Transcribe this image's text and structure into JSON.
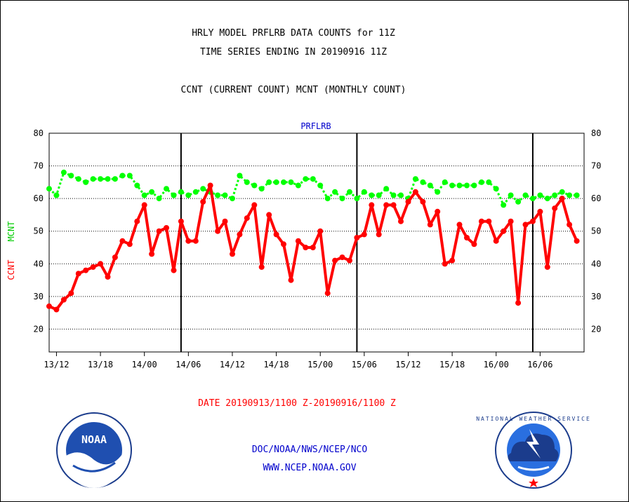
{
  "titles": {
    "line1": "HRLY MODEL PRFLRB DATA COUNTS for 11Z",
    "line2": "TIME SERIES ENDING IN 20190916 11Z",
    "line3": "CCNT (CURRENT COUNT) MCNT (MONTHLY COUNT)"
  },
  "chart_data": {
    "type": "line",
    "title": "PRFLRB",
    "xlabel": "DATE 20190913/1100 Z-20190916/1100 Z",
    "ylabel_left_1": "CCNT",
    "ylabel_left_2": "MCNT",
    "ylim": [
      13,
      80
    ],
    "y_ticks": [
      20,
      30,
      40,
      50,
      60,
      70,
      80
    ],
    "x_range_hours": [
      11,
      84
    ],
    "x_ticks": [
      {
        "hour": 12,
        "label": "13/12"
      },
      {
        "hour": 18,
        "label": "13/18"
      },
      {
        "hour": 24,
        "label": "14/00"
      },
      {
        "hour": 30,
        "label": "14/06"
      },
      {
        "hour": 36,
        "label": "14/12"
      },
      {
        "hour": 42,
        "label": "14/18"
      },
      {
        "hour": 48,
        "label": "15/00"
      },
      {
        "hour": 54,
        "label": "15/06"
      },
      {
        "hour": 60,
        "label": "15/12"
      },
      {
        "hour": 66,
        "label": "15/18"
      },
      {
        "hour": 72,
        "label": "16/00"
      },
      {
        "hour": 78,
        "label": "16/06"
      }
    ],
    "day_lines_hours": [
      29,
      53,
      77
    ],
    "grid": "horizontal",
    "x_start_hour": 11,
    "series": [
      {
        "name": "CCNT",
        "color": "#ff0000",
        "style": "solid",
        "values": [
          27,
          26,
          29,
          31,
          37,
          38,
          39,
          40,
          36,
          42,
          47,
          46,
          53,
          58,
          43,
          50,
          51,
          38,
          53,
          47,
          47,
          59,
          64,
          50,
          53,
          43,
          49,
          54,
          58,
          39,
          55,
          49,
          46,
          35,
          47,
          45,
          45,
          50,
          31,
          41,
          42,
          41,
          48,
          49,
          58,
          49,
          58,
          58,
          53,
          59,
          62,
          59,
          52,
          56,
          40,
          41,
          52,
          48,
          46,
          53,
          53,
          47,
          50,
          53,
          28,
          52,
          53,
          56,
          39,
          57,
          60,
          52,
          47
        ]
      },
      {
        "name": "MCNT",
        "color": "#00ff00",
        "style": "dotted",
        "values": [
          63,
          61,
          68,
          67,
          66,
          65,
          66,
          66,
          66,
          66,
          67,
          67,
          64,
          61,
          62,
          60,
          63,
          61,
          62,
          61,
          62,
          63,
          62,
          61,
          61,
          60,
          67,
          65,
          64,
          63,
          65,
          65,
          65,
          65,
          64,
          66,
          66,
          64,
          60,
          62,
          60,
          62,
          60,
          62,
          61,
          61,
          63,
          61,
          61,
          60,
          66,
          65,
          64,
          62,
          65,
          64,
          64,
          64,
          64,
          65,
          65,
          63,
          58,
          61,
          59,
          61,
          60,
          61,
          60,
          61,
          62,
          61,
          61
        ]
      }
    ]
  },
  "footer": {
    "agency": "DOC/NOAA/NWS/NCEP/NCO",
    "url": "WWW.NCEP.NOAA.GOV",
    "noaa_logo_text": "NOAA",
    "nws_logo_text": "NATIONAL WEATHER SERVICE"
  }
}
